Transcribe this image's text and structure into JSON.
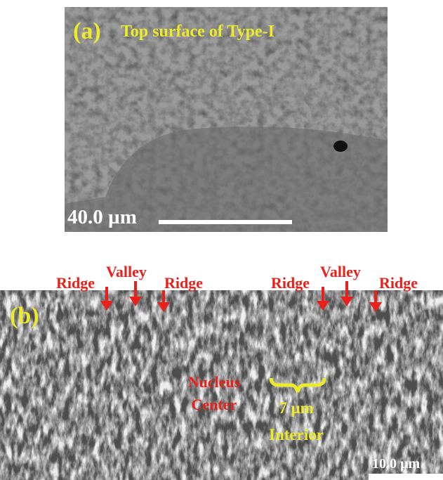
{
  "panel_a": {
    "label": "(a)",
    "title": "Top surface of Type-I",
    "scale_bar": "40.0 µm"
  },
  "panel_b": {
    "label": "(b)",
    "top_labels": [
      "Ridge",
      "Valley",
      "Ridge",
      "Ridge",
      "Valley",
      "Ridge"
    ],
    "nucleus": [
      "Nucleus",
      "Center"
    ],
    "width_label": "7 µm",
    "region": "Interior",
    "scale_bar": "10.0 µm"
  }
}
